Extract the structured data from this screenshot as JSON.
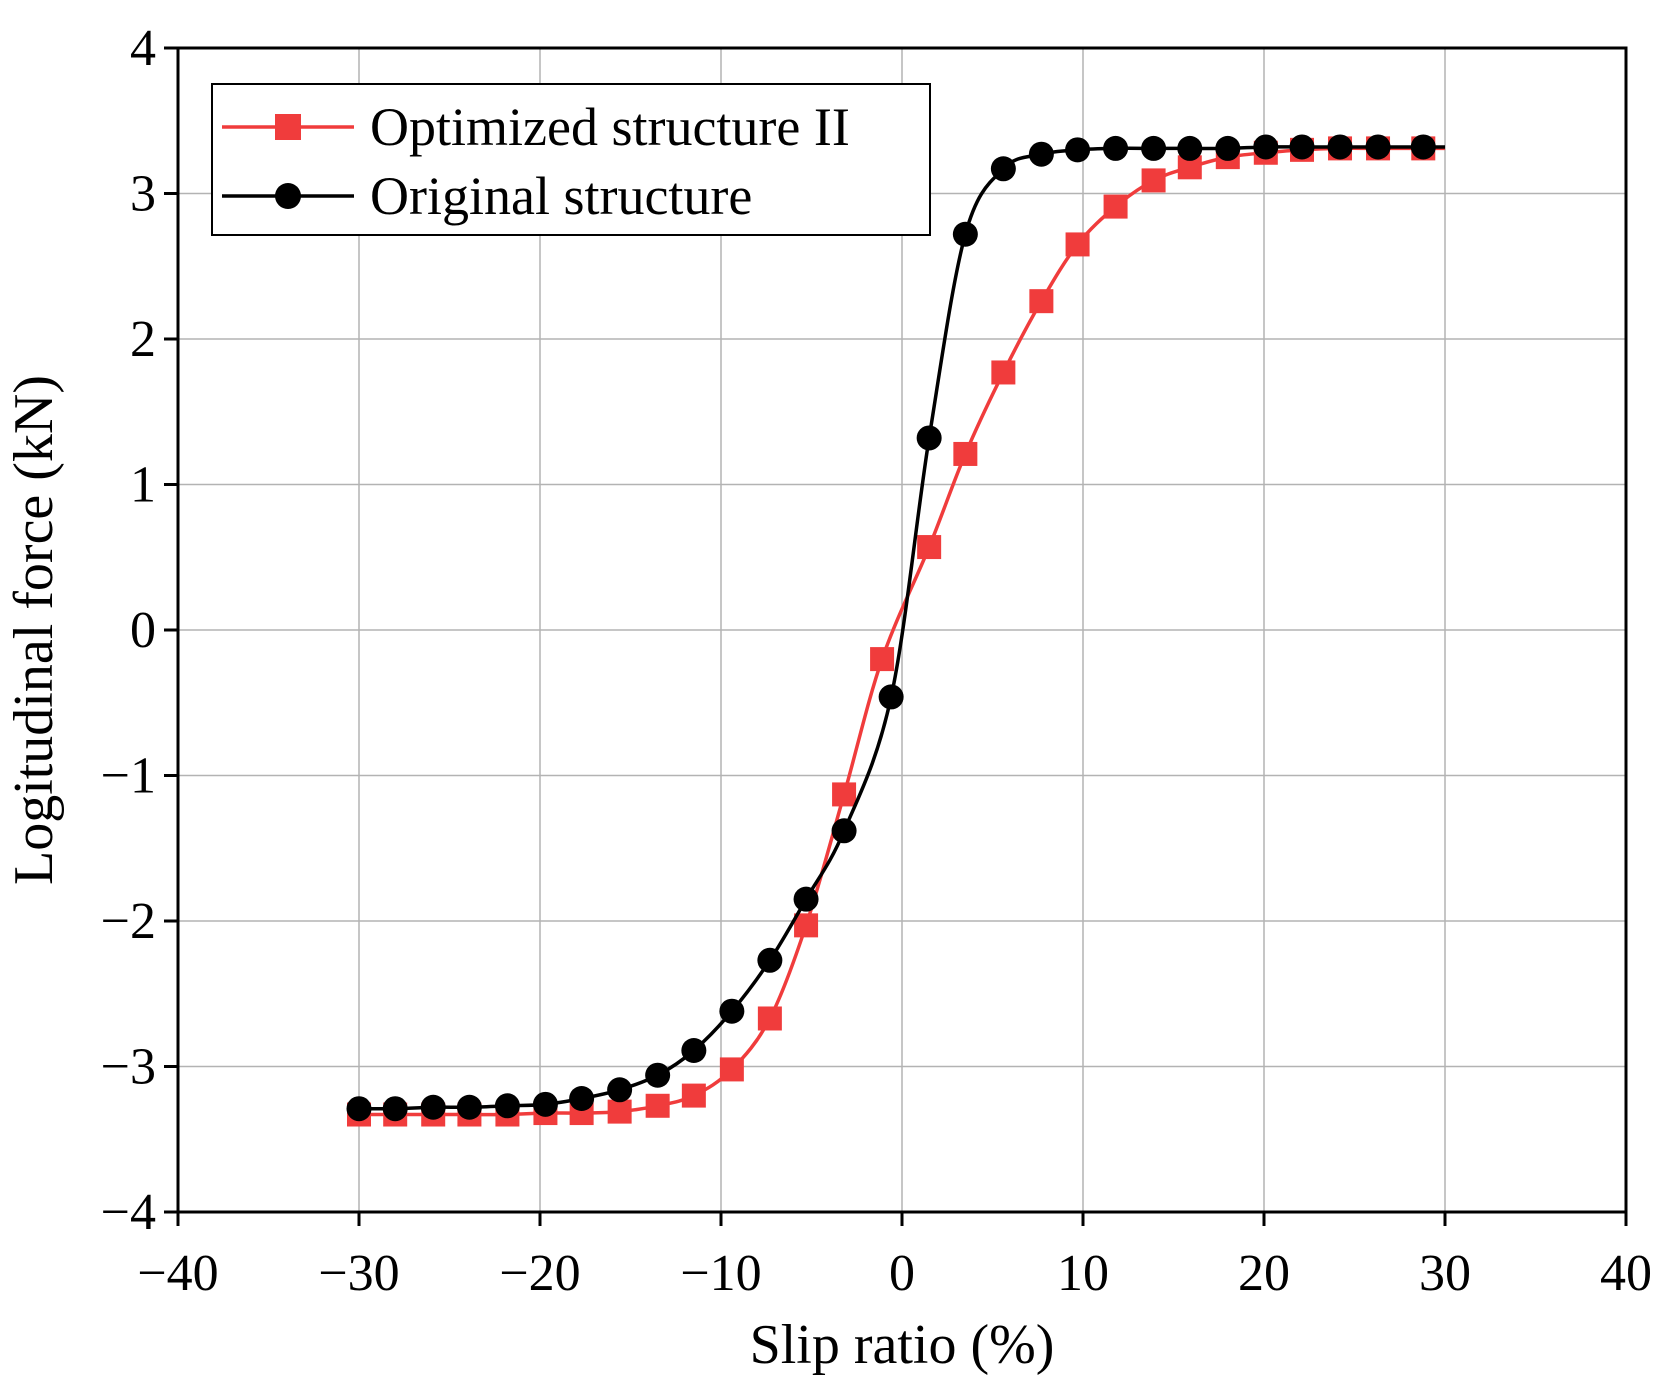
{
  "chart_data": {
    "type": "line",
    "xlabel": "Slip ratio (%)",
    "ylabel": "Logitudinal force (kN)",
    "xlim": [
      -40,
      40
    ],
    "ylim": [
      -4,
      4
    ],
    "xticks": [
      -40,
      -30,
      -20,
      -10,
      0,
      10,
      20,
      30,
      40
    ],
    "yticks": [
      -4,
      -3,
      -2,
      -1,
      0,
      1,
      2,
      3,
      4
    ],
    "xtick_labels": [
      "−40",
      "−30",
      "−20",
      "−10",
      "0",
      "10",
      "20",
      "30",
      "40"
    ],
    "ytick_labels": [
      "−4",
      "−3",
      "−2",
      "−1",
      "0",
      "1",
      "2",
      "3",
      "4"
    ],
    "grid": true,
    "legend_position": "top-left",
    "series": [
      {
        "name": "Optimized structure II",
        "color": "#f03c3c",
        "marker": "square",
        "x": [
          -30,
          -28,
          -25.9,
          -23.9,
          -21.8,
          -19.7,
          -17.7,
          -15.6,
          -13.5,
          -11.5,
          -9.4,
          -7.3,
          -5.3,
          -3.2,
          -1.1,
          1.5,
          3.5,
          5.6,
          7.7,
          9.7,
          11.8,
          13.9,
          15.9,
          18,
          20.1,
          22.1,
          24.2,
          26.3,
          28.8
        ],
        "values": [
          -3.33,
          -3.33,
          -3.33,
          -3.33,
          -3.33,
          -3.32,
          -3.32,
          -3.31,
          -3.27,
          -3.2,
          -3.02,
          -2.67,
          -2.03,
          -1.13,
          -0.2,
          0.57,
          1.21,
          1.77,
          2.26,
          2.65,
          2.91,
          3.09,
          3.18,
          3.25,
          3.28,
          3.3,
          3.31,
          3.31,
          3.31
        ]
      },
      {
        "name": "Original structure",
        "color": "#000000",
        "marker": "circle",
        "x": [
          -30,
          -28,
          -25.9,
          -23.9,
          -21.8,
          -19.7,
          -17.7,
          -15.6,
          -13.5,
          -11.5,
          -9.4,
          -7.3,
          -5.3,
          -3.2,
          -0.6,
          1.5,
          3.5,
          5.6,
          7.7,
          9.7,
          11.8,
          13.9,
          15.9,
          18,
          20.1,
          22.1,
          24.2,
          26.3,
          28.8
        ],
        "values": [
          -3.29,
          -3.29,
          -3.28,
          -3.28,
          -3.27,
          -3.26,
          -3.22,
          -3.16,
          -3.06,
          -2.89,
          -2.62,
          -2.27,
          -1.85,
          -1.38,
          -0.46,
          1.32,
          2.72,
          3.17,
          3.27,
          3.3,
          3.31,
          3.31,
          3.31,
          3.31,
          3.32,
          3.32,
          3.32,
          3.32,
          3.32
        ]
      }
    ]
  }
}
